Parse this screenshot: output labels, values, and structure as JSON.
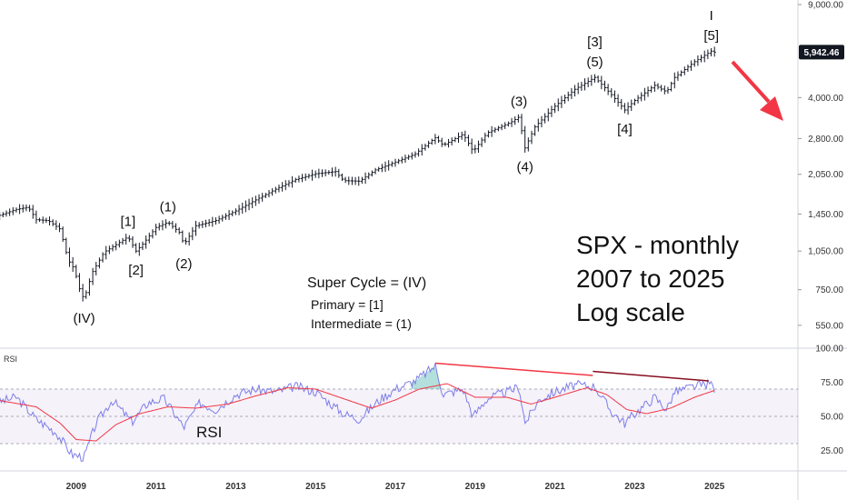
{
  "chart_data": [
    {
      "type": "ohlc",
      "title": "SPX - monthly",
      "subtitle_lines": [
        "SPX - monthly",
        "2007 to 2025",
        "Log scale"
      ],
      "scale": "log",
      "ylim": [
        480,
        9000
      ],
      "y_ticks": [
        "9,000.00",
        "5,942.46",
        "4,000.00",
        "2,800.00",
        "2,050.00",
        "1,450.00",
        "1,050.00",
        "750.00",
        "550.00"
      ],
      "y_tick_values": [
        9000,
        4000,
        2800,
        2050,
        1450,
        1050,
        750,
        550
      ],
      "x_ticks": [
        "2009",
        "2011",
        "2013",
        "2015",
        "2017",
        "2019",
        "2021",
        "2023",
        "2025"
      ],
      "last_price_label": "5,942.46",
      "last_price": 5942.46,
      "accent_color": "#2962ff",
      "price_series": [
        {
          "x": 2007.0,
          "y": 1420
        },
        {
          "x": 2007.5,
          "y": 1510
        },
        {
          "x": 2007.8,
          "y": 1540
        },
        {
          "x": 2008.0,
          "y": 1380
        },
        {
          "x": 2008.3,
          "y": 1370
        },
        {
          "x": 2008.6,
          "y": 1270
        },
        {
          "x": 2008.8,
          "y": 970
        },
        {
          "x": 2008.95,
          "y": 900
        },
        {
          "x": 2009.1,
          "y": 740
        },
        {
          "x": 2009.2,
          "y": 690
        },
        {
          "x": 2009.4,
          "y": 870
        },
        {
          "x": 2009.7,
          "y": 1040
        },
        {
          "x": 2010.0,
          "y": 1110
        },
        {
          "x": 2010.3,
          "y": 1190
        },
        {
          "x": 2010.5,
          "y": 1050
        },
        {
          "x": 2010.7,
          "y": 1130
        },
        {
          "x": 2011.0,
          "y": 1290
        },
        {
          "x": 2011.3,
          "y": 1350
        },
        {
          "x": 2011.6,
          "y": 1230
        },
        {
          "x": 2011.7,
          "y": 1110
        },
        {
          "x": 2012.0,
          "y": 1310
        },
        {
          "x": 2012.5,
          "y": 1370
        },
        {
          "x": 2013.0,
          "y": 1490
        },
        {
          "x": 2013.5,
          "y": 1640
        },
        {
          "x": 2014.0,
          "y": 1800
        },
        {
          "x": 2014.5,
          "y": 1960
        },
        {
          "x": 2015.0,
          "y": 2060
        },
        {
          "x": 2015.5,
          "y": 2100
        },
        {
          "x": 2015.7,
          "y": 1940
        },
        {
          "x": 2016.1,
          "y": 1930
        },
        {
          "x": 2016.5,
          "y": 2130
        },
        {
          "x": 2017.0,
          "y": 2280
        },
        {
          "x": 2017.5,
          "y": 2450
        },
        {
          "x": 2018.0,
          "y": 2820
        },
        {
          "x": 2018.2,
          "y": 2640
        },
        {
          "x": 2018.7,
          "y": 2910
        },
        {
          "x": 2018.95,
          "y": 2500
        },
        {
          "x": 2019.3,
          "y": 2940
        },
        {
          "x": 2019.9,
          "y": 3230
        },
        {
          "x": 2020.1,
          "y": 3380
        },
        {
          "x": 2020.25,
          "y": 2580
        },
        {
          "x": 2020.5,
          "y": 3100
        },
        {
          "x": 2021.0,
          "y": 3710
        },
        {
          "x": 2021.5,
          "y": 4300
        },
        {
          "x": 2022.0,
          "y": 4770
        },
        {
          "x": 2022.4,
          "y": 4130
        },
        {
          "x": 2022.75,
          "y": 3590
        },
        {
          "x": 2023.0,
          "y": 3900
        },
        {
          "x": 2023.5,
          "y": 4450
        },
        {
          "x": 2023.8,
          "y": 4200
        },
        {
          "x": 2024.0,
          "y": 4770
        },
        {
          "x": 2024.5,
          "y": 5470
        },
        {
          "x": 2024.92,
          "y": 6000
        },
        {
          "x": 2025.0,
          "y": 5942.46
        }
      ],
      "wave_labels": [
        {
          "text": "(IV)",
          "x": 2009.2,
          "y": 690,
          "pos": "below"
        },
        {
          "text": "[1]",
          "x": 2010.3,
          "y": 1190,
          "pos": "above"
        },
        {
          "text": "[2]",
          "x": 2010.5,
          "y": 1050,
          "pos": "below"
        },
        {
          "text": "(1)",
          "x": 2011.3,
          "y": 1350,
          "pos": "above"
        },
        {
          "text": "(2)",
          "x": 2011.7,
          "y": 1110,
          "pos": "below"
        },
        {
          "text": "(3)",
          "x": 2020.1,
          "y": 3380,
          "pos": "above"
        },
        {
          "text": "(4)",
          "x": 2020.25,
          "y": 2580,
          "pos": "below"
        },
        {
          "text": "[3]",
          "x": 2022.0,
          "y": 4770,
          "pos": "above2"
        },
        {
          "text": "(5)",
          "x": 2022.0,
          "y": 4770,
          "pos": "above"
        },
        {
          "text": "[4]",
          "x": 2022.75,
          "y": 3590,
          "pos": "below"
        },
        {
          "text": "I",
          "x": 2024.92,
          "y": 6000,
          "pos": "above2"
        },
        {
          "text": "[5]",
          "x": 2024.92,
          "y": 6000,
          "pos": "above"
        }
      ],
      "legend_lines": [
        "Super Cycle = (IV)",
        "Primary = [1]",
        "Intermediate = (1)"
      ],
      "arrow_color": "#f23645"
    },
    {
      "type": "line",
      "title": "RSI",
      "panel_label": "RSI",
      "ylim": [
        10,
        100
      ],
      "y_ticks": [
        "100.00",
        "75.00",
        "50.00",
        "25.00"
      ],
      "y_tick_values": [
        100,
        75,
        50,
        25
      ],
      "bands": {
        "upper": 70,
        "mid": 50,
        "lower": 30
      },
      "rsi_series": [
        {
          "x": 2007.0,
          "y": 60
        },
        {
          "x": 2007.5,
          "y": 64
        },
        {
          "x": 2008.0,
          "y": 48
        },
        {
          "x": 2008.5,
          "y": 38
        },
        {
          "x": 2008.9,
          "y": 22
        },
        {
          "x": 2009.2,
          "y": 20
        },
        {
          "x": 2009.5,
          "y": 45
        },
        {
          "x": 2009.9,
          "y": 62
        },
        {
          "x": 2010.4,
          "y": 46
        },
        {
          "x": 2010.8,
          "y": 60
        },
        {
          "x": 2011.2,
          "y": 63
        },
        {
          "x": 2011.7,
          "y": 42
        },
        {
          "x": 2012.1,
          "y": 60
        },
        {
          "x": 2012.5,
          "y": 55
        },
        {
          "x": 2013.0,
          "y": 66
        },
        {
          "x": 2013.5,
          "y": 70
        },
        {
          "x": 2014.0,
          "y": 68
        },
        {
          "x": 2014.5,
          "y": 72
        },
        {
          "x": 2015.0,
          "y": 68
        },
        {
          "x": 2015.7,
          "y": 52
        },
        {
          "x": 2016.1,
          "y": 48
        },
        {
          "x": 2016.6,
          "y": 62
        },
        {
          "x": 2017.0,
          "y": 70
        },
        {
          "x": 2017.5,
          "y": 76
        },
        {
          "x": 2018.0,
          "y": 87
        },
        {
          "x": 2018.2,
          "y": 66
        },
        {
          "x": 2018.7,
          "y": 70
        },
        {
          "x": 2018.95,
          "y": 50
        },
        {
          "x": 2019.3,
          "y": 63
        },
        {
          "x": 2019.9,
          "y": 69
        },
        {
          "x": 2020.1,
          "y": 72
        },
        {
          "x": 2020.25,
          "y": 45
        },
        {
          "x": 2020.6,
          "y": 62
        },
        {
          "x": 2021.0,
          "y": 68
        },
        {
          "x": 2021.5,
          "y": 73
        },
        {
          "x": 2022.0,
          "y": 72
        },
        {
          "x": 2022.4,
          "y": 54
        },
        {
          "x": 2022.75,
          "y": 45
        },
        {
          "x": 2023.0,
          "y": 52
        },
        {
          "x": 2023.5,
          "y": 64
        },
        {
          "x": 2023.8,
          "y": 55
        },
        {
          "x": 2024.0,
          "y": 68
        },
        {
          "x": 2024.5,
          "y": 72
        },
        {
          "x": 2024.92,
          "y": 74
        },
        {
          "x": 2025.0,
          "y": 70
        }
      ],
      "rsi_ma_series": [
        {
          "x": 2007.0,
          "y": 62
        },
        {
          "x": 2008.0,
          "y": 57
        },
        {
          "x": 2008.6,
          "y": 45
        },
        {
          "x": 2009.0,
          "y": 33
        },
        {
          "x": 2009.5,
          "y": 32
        },
        {
          "x": 2010.0,
          "y": 44
        },
        {
          "x": 2010.6,
          "y": 52
        },
        {
          "x": 2011.3,
          "y": 57
        },
        {
          "x": 2012.0,
          "y": 56
        },
        {
          "x": 2012.8,
          "y": 59
        },
        {
          "x": 2013.5,
          "y": 65
        },
        {
          "x": 2014.3,
          "y": 71
        },
        {
          "x": 2015.0,
          "y": 70
        },
        {
          "x": 2015.8,
          "y": 62
        },
        {
          "x": 2016.4,
          "y": 56
        },
        {
          "x": 2017.0,
          "y": 62
        },
        {
          "x": 2017.6,
          "y": 70
        },
        {
          "x": 2018.3,
          "y": 74
        },
        {
          "x": 2019.0,
          "y": 64
        },
        {
          "x": 2019.8,
          "y": 64
        },
        {
          "x": 2020.4,
          "y": 59
        },
        {
          "x": 2021.0,
          "y": 64
        },
        {
          "x": 2021.8,
          "y": 71
        },
        {
          "x": 2022.3,
          "y": 66
        },
        {
          "x": 2022.8,
          "y": 55
        },
        {
          "x": 2023.3,
          "y": 52
        },
        {
          "x": 2023.9,
          "y": 56
        },
        {
          "x": 2024.5,
          "y": 64
        },
        {
          "x": 2025.0,
          "y": 69
        }
      ],
      "divergence_lines": [
        {
          "x1": 2018.0,
          "y1": 89,
          "x2": 2021.95,
          "y2": 80,
          "color": "#f23645"
        },
        {
          "x1": 2021.95,
          "y1": 83,
          "x2": 2024.85,
          "y2": 76,
          "color": "#880e1f"
        }
      ],
      "line_color": "#7e7ee8",
      "ma_color": "#f23645"
    }
  ]
}
